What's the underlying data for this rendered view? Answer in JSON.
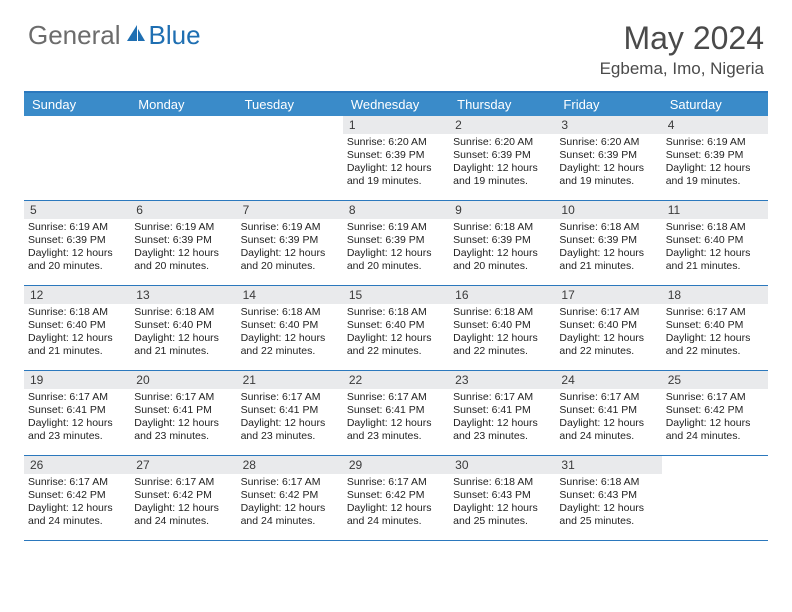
{
  "brand": {
    "part1": "General",
    "part2": "Blue"
  },
  "title": "May 2024",
  "location": "Egbema, Imo, Nigeria",
  "colors": {
    "header_bg": "#3a8bc9",
    "rule": "#2b78bd",
    "daynum_bg": "#e9eaec",
    "logo_gray": "#6c6c6c",
    "logo_blue": "#1f6fb2",
    "text": "#222222"
  },
  "day_names": [
    "Sunday",
    "Monday",
    "Tuesday",
    "Wednesday",
    "Thursday",
    "Friday",
    "Saturday"
  ],
  "weeks": [
    [
      {
        "n": "",
        "sr": "",
        "ss": "",
        "dl": ""
      },
      {
        "n": "",
        "sr": "",
        "ss": "",
        "dl": ""
      },
      {
        "n": "",
        "sr": "",
        "ss": "",
        "dl": ""
      },
      {
        "n": "1",
        "sr": "6:20 AM",
        "ss": "6:39 PM",
        "dl": "12 hours and 19 minutes."
      },
      {
        "n": "2",
        "sr": "6:20 AM",
        "ss": "6:39 PM",
        "dl": "12 hours and 19 minutes."
      },
      {
        "n": "3",
        "sr": "6:20 AM",
        "ss": "6:39 PM",
        "dl": "12 hours and 19 minutes."
      },
      {
        "n": "4",
        "sr": "6:19 AM",
        "ss": "6:39 PM",
        "dl": "12 hours and 19 minutes."
      }
    ],
    [
      {
        "n": "5",
        "sr": "6:19 AM",
        "ss": "6:39 PM",
        "dl": "12 hours and 20 minutes."
      },
      {
        "n": "6",
        "sr": "6:19 AM",
        "ss": "6:39 PM",
        "dl": "12 hours and 20 minutes."
      },
      {
        "n": "7",
        "sr": "6:19 AM",
        "ss": "6:39 PM",
        "dl": "12 hours and 20 minutes."
      },
      {
        "n": "8",
        "sr": "6:19 AM",
        "ss": "6:39 PM",
        "dl": "12 hours and 20 minutes."
      },
      {
        "n": "9",
        "sr": "6:18 AM",
        "ss": "6:39 PM",
        "dl": "12 hours and 20 minutes."
      },
      {
        "n": "10",
        "sr": "6:18 AM",
        "ss": "6:39 PM",
        "dl": "12 hours and 21 minutes."
      },
      {
        "n": "11",
        "sr": "6:18 AM",
        "ss": "6:40 PM",
        "dl": "12 hours and 21 minutes."
      }
    ],
    [
      {
        "n": "12",
        "sr": "6:18 AM",
        "ss": "6:40 PM",
        "dl": "12 hours and 21 minutes."
      },
      {
        "n": "13",
        "sr": "6:18 AM",
        "ss": "6:40 PM",
        "dl": "12 hours and 21 minutes."
      },
      {
        "n": "14",
        "sr": "6:18 AM",
        "ss": "6:40 PM",
        "dl": "12 hours and 22 minutes."
      },
      {
        "n": "15",
        "sr": "6:18 AM",
        "ss": "6:40 PM",
        "dl": "12 hours and 22 minutes."
      },
      {
        "n": "16",
        "sr": "6:18 AM",
        "ss": "6:40 PM",
        "dl": "12 hours and 22 minutes."
      },
      {
        "n": "17",
        "sr": "6:17 AM",
        "ss": "6:40 PM",
        "dl": "12 hours and 22 minutes."
      },
      {
        "n": "18",
        "sr": "6:17 AM",
        "ss": "6:40 PM",
        "dl": "12 hours and 22 minutes."
      }
    ],
    [
      {
        "n": "19",
        "sr": "6:17 AM",
        "ss": "6:41 PM",
        "dl": "12 hours and 23 minutes."
      },
      {
        "n": "20",
        "sr": "6:17 AM",
        "ss": "6:41 PM",
        "dl": "12 hours and 23 minutes."
      },
      {
        "n": "21",
        "sr": "6:17 AM",
        "ss": "6:41 PM",
        "dl": "12 hours and 23 minutes."
      },
      {
        "n": "22",
        "sr": "6:17 AM",
        "ss": "6:41 PM",
        "dl": "12 hours and 23 minutes."
      },
      {
        "n": "23",
        "sr": "6:17 AM",
        "ss": "6:41 PM",
        "dl": "12 hours and 23 minutes."
      },
      {
        "n": "24",
        "sr": "6:17 AM",
        "ss": "6:41 PM",
        "dl": "12 hours and 24 minutes."
      },
      {
        "n": "25",
        "sr": "6:17 AM",
        "ss": "6:42 PM",
        "dl": "12 hours and 24 minutes."
      }
    ],
    [
      {
        "n": "26",
        "sr": "6:17 AM",
        "ss": "6:42 PM",
        "dl": "12 hours and 24 minutes."
      },
      {
        "n": "27",
        "sr": "6:17 AM",
        "ss": "6:42 PM",
        "dl": "12 hours and 24 minutes."
      },
      {
        "n": "28",
        "sr": "6:17 AM",
        "ss": "6:42 PM",
        "dl": "12 hours and 24 minutes."
      },
      {
        "n": "29",
        "sr": "6:17 AM",
        "ss": "6:42 PM",
        "dl": "12 hours and 24 minutes."
      },
      {
        "n": "30",
        "sr": "6:18 AM",
        "ss": "6:43 PM",
        "dl": "12 hours and 25 minutes."
      },
      {
        "n": "31",
        "sr": "6:18 AM",
        "ss": "6:43 PM",
        "dl": "12 hours and 25 minutes."
      },
      {
        "n": "",
        "sr": "",
        "ss": "",
        "dl": ""
      }
    ]
  ],
  "labels": {
    "sunrise": "Sunrise:",
    "sunset": "Sunset:",
    "daylight": "Daylight:"
  }
}
